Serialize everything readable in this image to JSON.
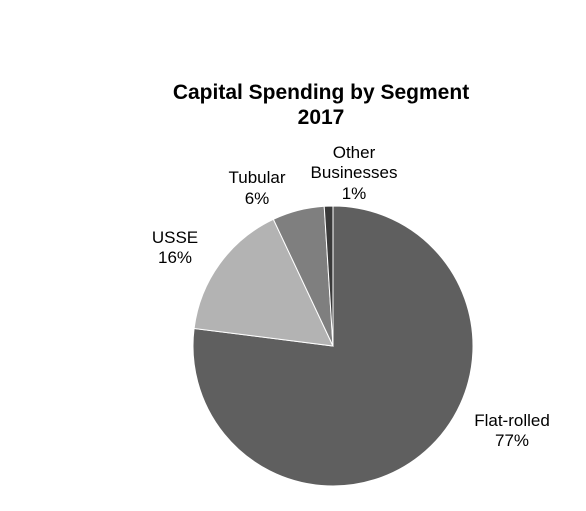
{
  "chart_data": {
    "type": "pie",
    "title": "Capital Spending by Segment",
    "subtitle": "2017",
    "slices": [
      {
        "label": "Flat-rolled",
        "value": 77,
        "value_label": "77%",
        "color": "#5f5f5f"
      },
      {
        "label": "USSE",
        "value": 16,
        "value_label": "16%",
        "color": "#b3b3b3"
      },
      {
        "label": "Tubular",
        "value": 6,
        "value_label": "6%",
        "color": "#7f7f7f"
      },
      {
        "label": "Other Businesses",
        "label_lines": [
          "Other",
          "Businesses"
        ],
        "value": 1,
        "value_label": "1%",
        "color": "#3a3a3a"
      }
    ],
    "legend": "none",
    "start": "12 o'clock",
    "direction": "clockwise"
  }
}
